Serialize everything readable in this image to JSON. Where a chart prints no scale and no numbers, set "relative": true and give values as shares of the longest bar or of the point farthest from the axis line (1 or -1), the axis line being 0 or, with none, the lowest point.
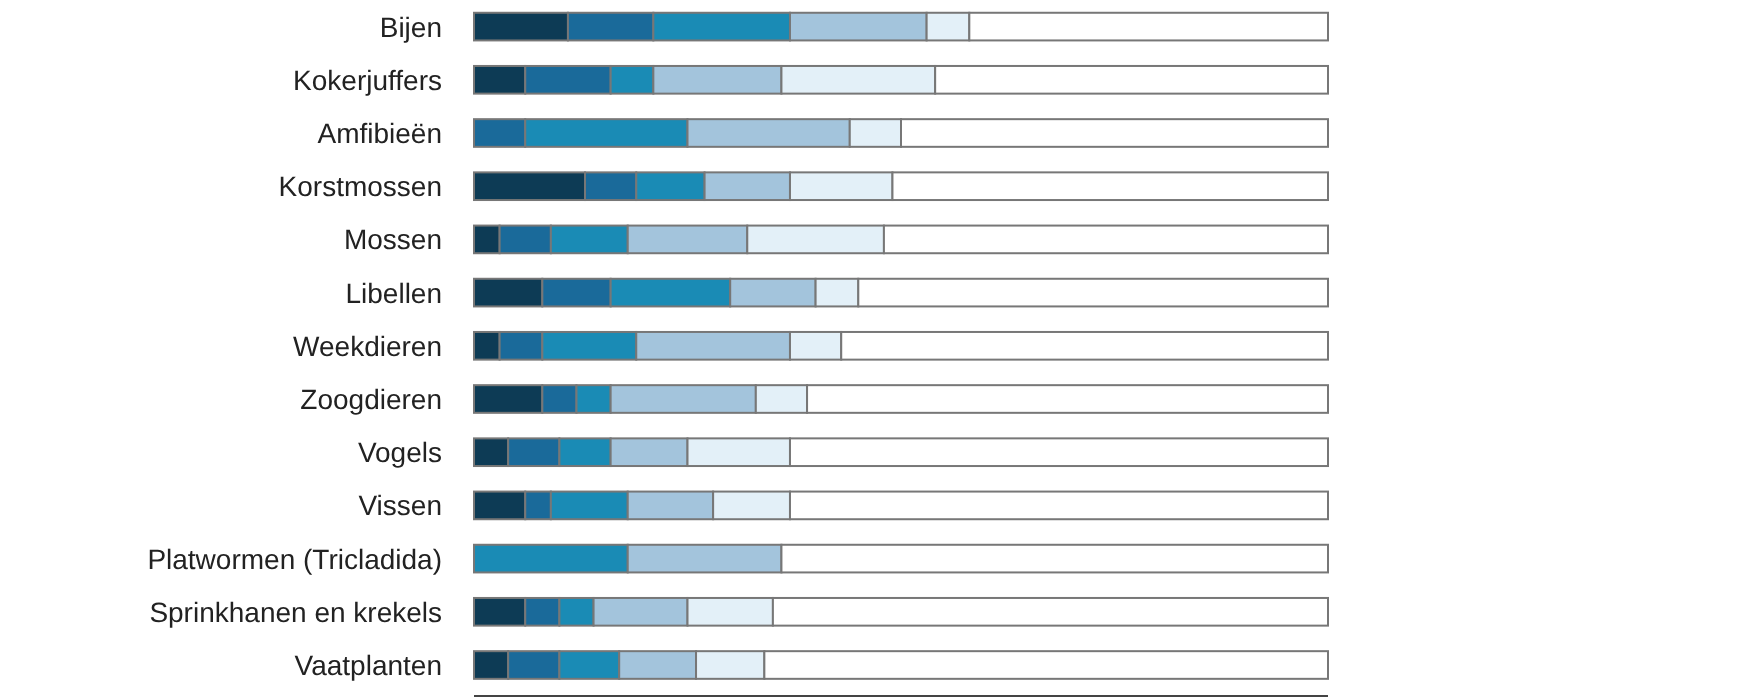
{
  "chart_data": {
    "type": "bar",
    "orientation": "horizontal",
    "stacked": true,
    "relative": true,
    "categories": [
      "Bijen",
      "Kokerjuffers",
      "Amfibieën",
      "Korstmossen",
      "Mossen",
      "Libellen",
      "Weekdieren",
      "Zoogdieren",
      "Vogels",
      "Vissen",
      "Platwormen (Tricladida)",
      "Sprinkhanen en krekels",
      "Vaatplanten"
    ],
    "series": [
      {
        "color": "#0d3b55",
        "values": [
          0.11,
          0.06,
          0,
          0.13,
          0.03,
          0.08,
          0.03,
          0.08,
          0.04,
          0.06,
          0,
          0.06,
          0.04
        ]
      },
      {
        "color": "#1a6a9a",
        "values": [
          0.1,
          0.1,
          0.06,
          0.06,
          0.06,
          0.08,
          0.05,
          0.04,
          0.06,
          0.03,
          0,
          0.04,
          0.06
        ]
      },
      {
        "color": "#1a8bb5",
        "values": [
          0.16,
          0.05,
          0.19,
          0.08,
          0.09,
          0.14,
          0.11,
          0.04,
          0.06,
          0.09,
          0.18,
          0.04,
          0.07
        ]
      },
      {
        "color": "#a3c4dc",
        "values": [
          0.16,
          0.15,
          0.19,
          0.1,
          0.14,
          0.1,
          0.18,
          0.17,
          0.09,
          0.1,
          0.18,
          0.11,
          0.09
        ]
      },
      {
        "color": "#e3f0f8",
        "values": [
          0.05,
          0.18,
          0.06,
          0.12,
          0.16,
          0.05,
          0.06,
          0.06,
          0.12,
          0.09,
          0,
          0.1,
          0.08
        ]
      },
      {
        "color": "#ffffff",
        "values": [
          0.42,
          0.46,
          0.5,
          0.51,
          0.52,
          0.55,
          0.57,
          0.61,
          0.63,
          0.63,
          0.64,
          0.65,
          0.66
        ]
      }
    ]
  }
}
